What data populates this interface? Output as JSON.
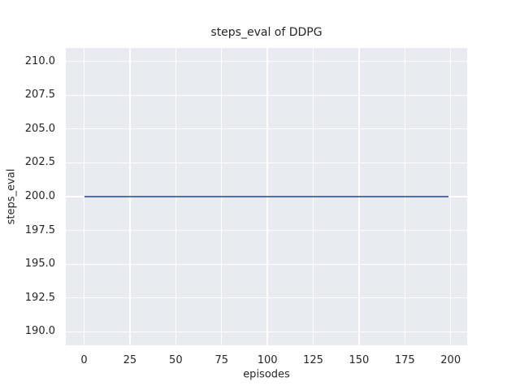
{
  "chart_data": {
    "type": "line",
    "title": "steps_eval of DDPG",
    "xlabel": "episodes",
    "ylabel": "steps_eval",
    "xlim": [
      -10,
      209
    ],
    "ylim": [
      189,
      211
    ],
    "grid": true,
    "legend": null,
    "xticks": [
      {
        "value": 0,
        "label": "0"
      },
      {
        "value": 25,
        "label": "25"
      },
      {
        "value": 50,
        "label": "50"
      },
      {
        "value": 75,
        "label": "75"
      },
      {
        "value": 100,
        "label": "100"
      },
      {
        "value": 125,
        "label": "125"
      },
      {
        "value": 150,
        "label": "150"
      },
      {
        "value": 175,
        "label": "175"
      },
      {
        "value": 200,
        "label": "200"
      }
    ],
    "yticks": [
      {
        "value": 190.0,
        "label": "190.0"
      },
      {
        "value": 192.5,
        "label": "192.5"
      },
      {
        "value": 195.0,
        "label": "195.0"
      },
      {
        "value": 197.5,
        "label": "197.5"
      },
      {
        "value": 200.0,
        "label": "200.0"
      },
      {
        "value": 202.5,
        "label": "202.5"
      },
      {
        "value": 205.0,
        "label": "205.0"
      },
      {
        "value": 207.5,
        "label": "207.5"
      },
      {
        "value": 210.0,
        "label": "210.0"
      }
    ],
    "series": [
      {
        "name": "DDPG steps_eval",
        "color": "#4c72b0",
        "x": [
          0,
          199
        ],
        "y": [
          200,
          200
        ],
        "shape": "constant horizontal line at y=200 for episodes 0 through 199"
      }
    ],
    "colors": {
      "figure_background": "#ffffff",
      "axes_background": "#eaeaf2",
      "grid": "#ffffff",
      "text": "#262626"
    }
  }
}
